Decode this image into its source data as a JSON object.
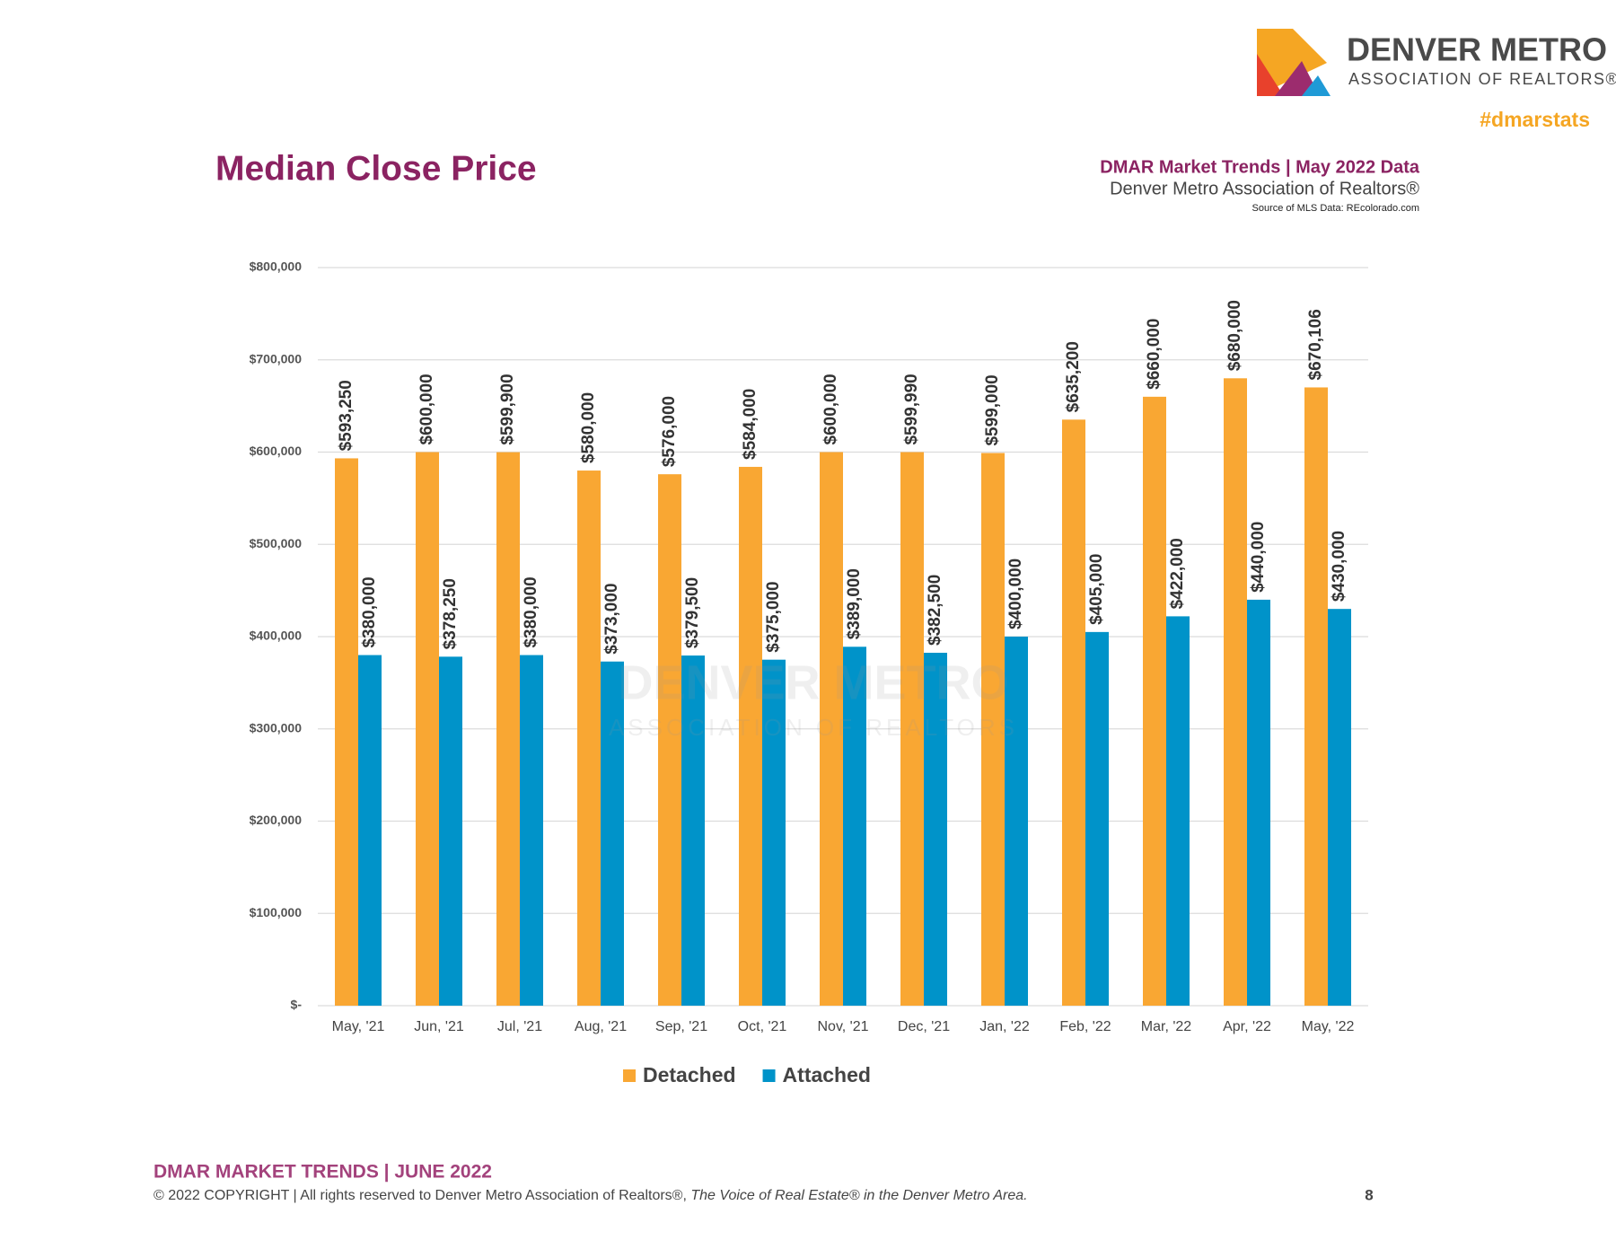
{
  "header": {
    "logo_title": "DENVER METRO",
    "logo_subtitle": "ASSOCIATION OF REALTORS®",
    "hashtag": "#dmarstats",
    "report_title": "DMAR Market Trends | May 2022 Data",
    "report_org": "Denver Metro Association of Realtors®",
    "source": "Source of MLS Data: REcolorado.com"
  },
  "chart_data": {
    "type": "bar",
    "title": "Median Close Price",
    "categories": [
      "May, '21",
      "Jun, '21",
      "Jul, '21",
      "Aug, '21",
      "Sep, '21",
      "Oct, '21",
      "Nov, '21",
      "Dec, '21",
      "Jan, '22",
      "Feb, '22",
      "Mar, '22",
      "Apr, '22",
      "May, '22"
    ],
    "series": [
      {
        "name": "Detached",
        "color": "#f9a733",
        "values": [
          593250,
          600000,
          599900,
          580000,
          576000,
          584000,
          600000,
          599990,
          599000,
          635200,
          660000,
          680000,
          670106
        ],
        "value_labels": [
          "$593,250",
          "$600,000",
          "$599,900",
          "$580,000",
          "$576,000",
          "$584,000",
          "$600,000",
          "$599,990",
          "$599,000",
          "$635,200",
          "$660,000",
          "$680,000",
          "$670,106"
        ]
      },
      {
        "name": "Attached",
        "color": "#0093c9",
        "values": [
          380000,
          378250,
          380000,
          373000,
          379500,
          375000,
          389000,
          382500,
          400000,
          405000,
          422000,
          440000,
          430000
        ],
        "value_labels": [
          "$380,000",
          "$378,250",
          "$380,000",
          "$373,000",
          "$379,500",
          "$375,000",
          "$389,000",
          "$382,500",
          "$400,000",
          "$405,000",
          "$422,000",
          "$440,000",
          "$430,000"
        ]
      }
    ],
    "ylim": [
      0,
      800000
    ],
    "yticks": [
      {
        "value": 0,
        "label": "$-"
      },
      {
        "value": 100000,
        "label": "$100,000"
      },
      {
        "value": 200000,
        "label": "$200,000"
      },
      {
        "value": 300000,
        "label": "$300,000"
      },
      {
        "value": 400000,
        "label": "$400,000"
      },
      {
        "value": 500000,
        "label": "$500,000"
      },
      {
        "value": 600000,
        "label": "$600,000"
      },
      {
        "value": 700000,
        "label": "$700,000"
      },
      {
        "value": 800000,
        "label": "$800,000"
      }
    ],
    "grid": true,
    "legend": "bottom",
    "watermark": [
      "DENVER METRO",
      "ASSOCIATION OF REALTORS"
    ]
  },
  "footer": {
    "title": "DMAR MARKET TRENDS | JUNE 2022",
    "copyright": "© 2022 COPYRIGHT | All rights reserved to Denver Metro Association of Realtors®, ",
    "tagline": "The Voice of Real Estate® in the Denver Metro Area.",
    "page": "8"
  }
}
